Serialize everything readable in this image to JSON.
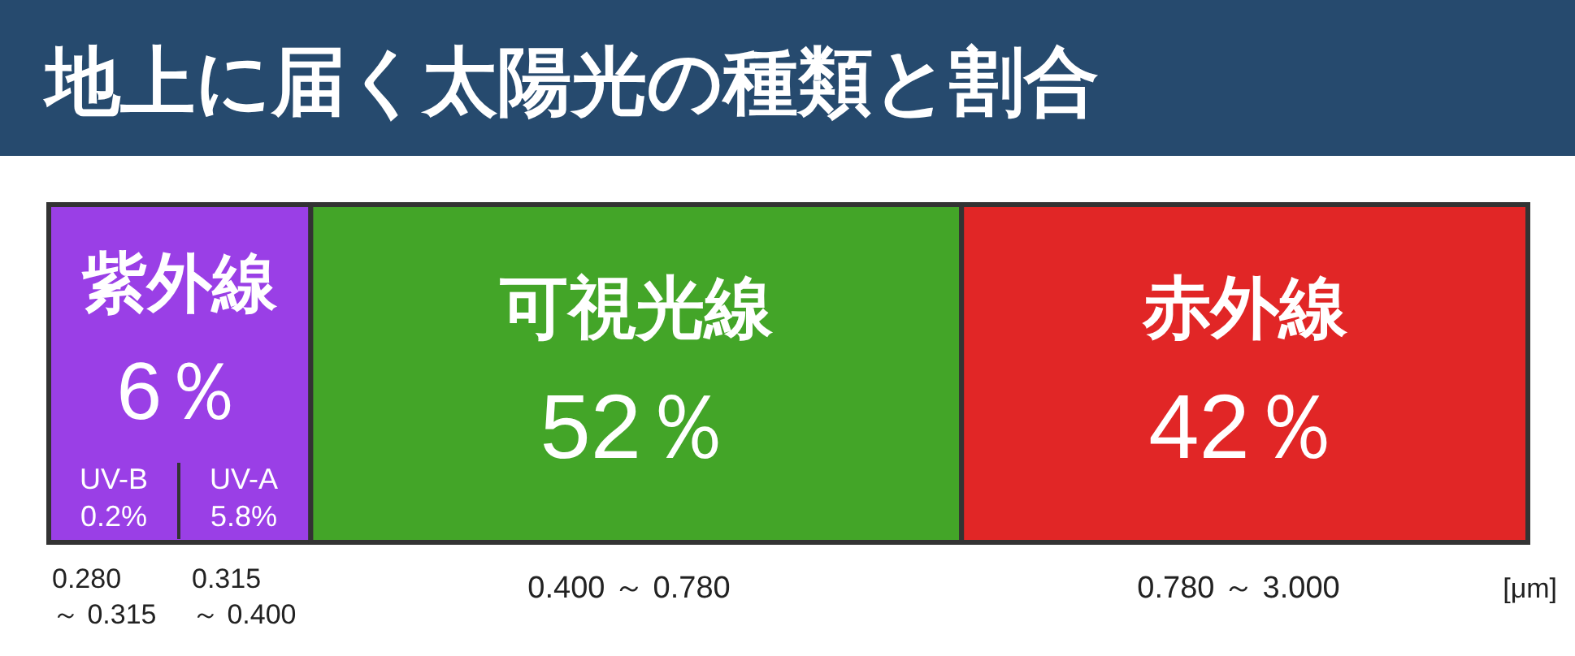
{
  "chart_data": {
    "type": "other",
    "title": "地上に届く太陽光の種類と割合",
    "categories": [
      "紫外線",
      "可視光線",
      "赤外線"
    ],
    "values": [
      6,
      52,
      42
    ],
    "colors": [
      "#9a3fe6",
      "#43a528",
      "#e12626"
    ],
    "value_labels": [
      "6％",
      "52％",
      "42％"
    ],
    "annotations": [
      "UV-B",
      "0.2%",
      "UV-A",
      "5.8%",
      "0.280 ～ 0.315",
      "0.315 ～ 0.400",
      "0.400 ～ 0.780",
      "0.780 ～ 3.000",
      "[μm]"
    ]
  }
}
